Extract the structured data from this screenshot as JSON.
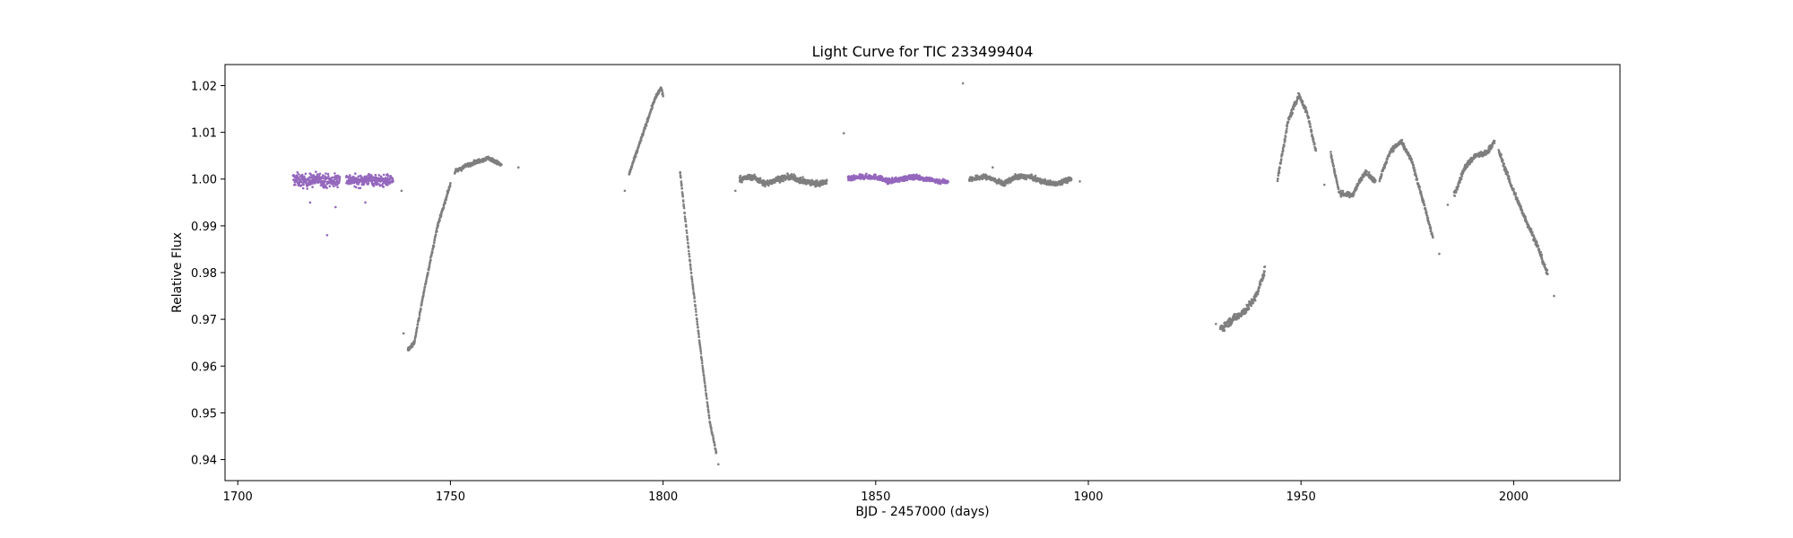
{
  "chart_data": {
    "type": "scatter",
    "title": "Light Curve for TIC 233499404",
    "xlabel": "BJD - 2457000 (days)",
    "ylabel": "Relative Flux",
    "xlim": [
      1697,
      2025
    ],
    "ylim": [
      0.9355,
      1.0245
    ],
    "x_ticks": [
      1700,
      1750,
      1800,
      1850,
      1900,
      1950,
      2000
    ],
    "y_ticks": [
      0.94,
      0.95,
      0.96,
      0.97,
      0.98,
      0.99,
      1.0,
      1.01,
      1.02
    ],
    "grid": false,
    "colors": {
      "highlight": "#9467bd",
      "base": "#7f7f7f"
    },
    "series": [
      {
        "color_key": "highlight",
        "segments": [
          {
            "x": [
              1713,
              1716,
              1719,
              1722,
              1724
            ],
            "y": [
              1.0,
              0.9995,
              1.0,
              0.9995,
              1.0
            ],
            "scatter": 0.0014
          },
          {
            "x": [
              1725.5,
              1728,
              1731,
              1734,
              1736.5
            ],
            "y": [
              1.0,
              0.9995,
              1.0,
              0.9995,
              1.0
            ],
            "scatter": 0.0012
          },
          {
            "x": [
              1843.5,
              1847,
              1850,
              1853,
              1856,
              1859,
              1862,
              1865,
              1867
            ],
            "y": [
              1.0,
              1.0005,
              1.0005,
              0.9995,
              1.0,
              1.0005,
              1.0,
              0.9995,
              0.9995
            ],
            "scatter": 0.0005
          }
        ],
        "outliers": {
          "x": [
            1721,
            1723,
            1717,
            1730
          ],
          "y": [
            0.988,
            0.994,
            0.995,
            0.995
          ]
        }
      },
      {
        "color_key": "base",
        "segments": [
          {
            "x": [
              1740,
              1741.5,
              1744,
              1747,
              1750
            ],
            "y": [
              0.9635,
              0.965,
              0.977,
              0.99,
              0.999
            ],
            "scatter": 0.0004
          },
          {
            "x": [
              1751,
              1754,
              1757,
              1759,
              1762
            ],
            "y": [
              1.0015,
              1.003,
              1.004,
              1.0045,
              1.003
            ],
            "scatter": 0.0004
          },
          {
            "x": [
              1792,
              1795,
              1798,
              1799.5,
              1800
            ],
            "y": [
              1.001,
              1.009,
              1.017,
              1.0195,
              1.018
            ],
            "scatter": 0.0004
          },
          {
            "x": [
              1804,
              1806.5,
              1809,
              1811,
              1812.5
            ],
            "y": [
              1.0015,
              0.981,
              0.962,
              0.948,
              0.9415
            ],
            "scatter": 0.0003
          },
          {
            "x": [
              1818,
              1821,
              1824,
              1827,
              1830,
              1833,
              1836,
              1838.5
            ],
            "y": [
              1.0,
              1.0005,
              0.999,
              1.0,
              1.0005,
              0.9995,
              0.999,
              0.9995
            ],
            "scatter": 0.0006
          },
          {
            "x": [
              1872,
              1876,
              1880,
              1883,
              1886,
              1889,
              1892,
              1896
            ],
            "y": [
              1.0,
              1.0005,
              0.999,
              1.0005,
              1.0005,
              0.9995,
              0.999,
              1.0
            ],
            "scatter": 0.0005
          },
          {
            "x": [
              1931,
              1934,
              1937,
              1939.5,
              1941.5
            ],
            "y": [
              0.968,
              0.97,
              0.972,
              0.975,
              0.9805
            ],
            "scatter": 0.0008
          },
          {
            "x": [
              1944.5,
              1947,
              1949.5,
              1951.5,
              1953.5
            ],
            "y": [
              1.0,
              1.0125,
              1.018,
              1.014,
              1.006
            ],
            "scatter": 0.0006
          },
          {
            "x": [
              1957,
              1959,
              1962,
              1965,
              1967.5
            ],
            "y": [
              1.0055,
              0.997,
              0.9965,
              1.0015,
              0.9995
            ],
            "scatter": 0.0005
          },
          {
            "x": [
              1968.5,
              1971,
              1973.5,
              1976,
              1978.5,
              1981
            ],
            "y": [
              1.0,
              1.006,
              1.008,
              1.004,
              0.996,
              0.9875
            ],
            "scatter": 0.0005
          },
          {
            "x": [
              1986,
              1988.5,
              1991,
              1993.5,
              1995.5
            ],
            "y": [
              0.9965,
              1.0025,
              1.005,
              1.0055,
              1.008
            ],
            "scatter": 0.0006
          },
          {
            "x": [
              1996.5,
              1999.5,
              2002.5,
              2005.5,
              2008
            ],
            "y": [
              1.006,
              0.9985,
              0.992,
              0.986,
              0.9795
            ],
            "scatter": 0.0006
          }
        ],
        "outliers": {
          "x": [
            1738.5,
            1739,
            1791,
            1813,
            1817,
            1842.5,
            1870.5,
            1877.5,
            1898,
            1930,
            1955.5,
            1982.5,
            1984.5,
            2009.5,
            1766
          ],
          "y": [
            0.9975,
            0.967,
            0.9975,
            0.939,
            0.9975,
            1.0098,
            1.0205,
            1.0025,
            0.9995,
            0.969,
            0.9988,
            0.984,
            0.9945,
            0.975,
            1.0025
          ]
        }
      }
    ]
  }
}
